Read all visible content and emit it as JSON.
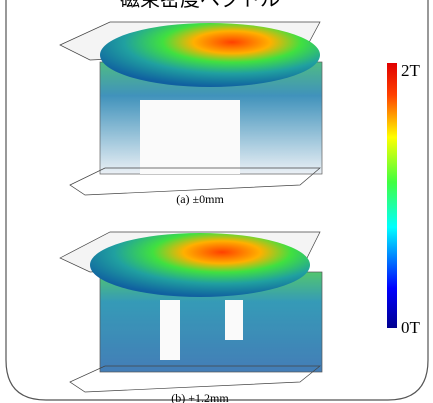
{
  "title": "磁束密度ベクトル",
  "panels": [
    {
      "caption": "(a) ±0mm"
    },
    {
      "caption": "(b) +1.2mm"
    }
  ],
  "colorbar": {
    "max_label": "2T",
    "min_label": "0T"
  }
}
